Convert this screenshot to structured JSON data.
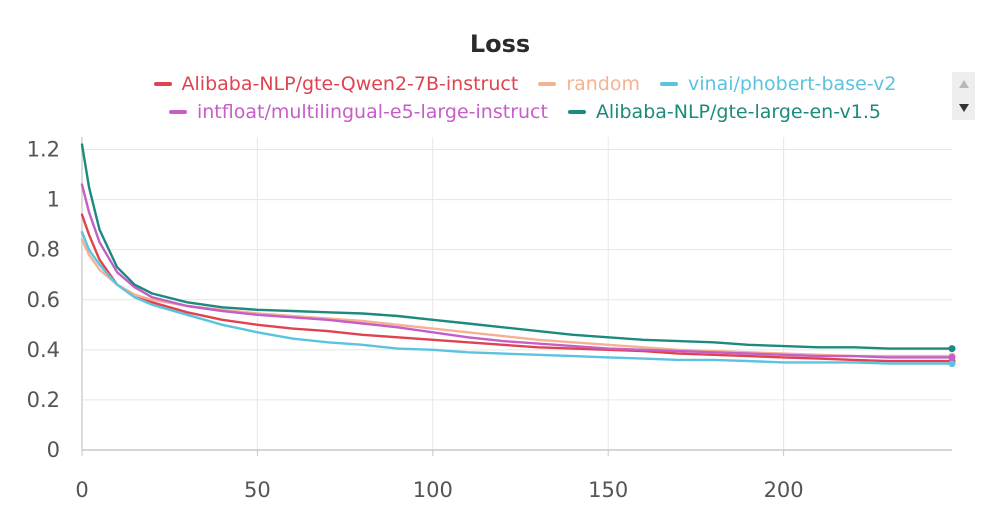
{
  "chart_data": {
    "type": "line",
    "title": "Loss",
    "xlabel": "",
    "ylabel": "",
    "xlim": [
      0,
      248
    ],
    "ylim": [
      0,
      1.25
    ],
    "x_ticks": [
      "0",
      "50",
      "100",
      "150",
      "200"
    ],
    "y_ticks": [
      "0",
      "0.2",
      "0.4",
      "0.6",
      "0.8",
      "1",
      "1.2"
    ],
    "grid": true,
    "legend_position": "top",
    "series": [
      {
        "name": "Alibaba-NLP/gte-Qwen2-7B-instruct",
        "color": "#e0434f",
        "points": [
          [
            0,
            0.94
          ],
          [
            2,
            0.86
          ],
          [
            5,
            0.76
          ],
          [
            10,
            0.66
          ],
          [
            15,
            0.62
          ],
          [
            20,
            0.59
          ],
          [
            30,
            0.55
          ],
          [
            40,
            0.52
          ],
          [
            50,
            0.5
          ],
          [
            60,
            0.485
          ],
          [
            70,
            0.475
          ],
          [
            80,
            0.46
          ],
          [
            90,
            0.45
          ],
          [
            100,
            0.44
          ],
          [
            110,
            0.43
          ],
          [
            120,
            0.42
          ],
          [
            130,
            0.41
          ],
          [
            140,
            0.405
          ],
          [
            150,
            0.4
          ],
          [
            160,
            0.395
          ],
          [
            170,
            0.385
          ],
          [
            180,
            0.38
          ],
          [
            190,
            0.375
          ],
          [
            200,
            0.37
          ],
          [
            210,
            0.365
          ],
          [
            220,
            0.36
          ],
          [
            230,
            0.355
          ],
          [
            240,
            0.355
          ],
          [
            248,
            0.355
          ]
        ]
      },
      {
        "name": "random",
        "color": "#f4b293",
        "points": [
          [
            0,
            0.84
          ],
          [
            2,
            0.78
          ],
          [
            5,
            0.72
          ],
          [
            10,
            0.66
          ],
          [
            15,
            0.62
          ],
          [
            20,
            0.6
          ],
          [
            30,
            0.575
          ],
          [
            40,
            0.56
          ],
          [
            50,
            0.545
          ],
          [
            60,
            0.535
          ],
          [
            70,
            0.525
          ],
          [
            80,
            0.515
          ],
          [
            90,
            0.5
          ],
          [
            100,
            0.485
          ],
          [
            110,
            0.47
          ],
          [
            120,
            0.455
          ],
          [
            130,
            0.44
          ],
          [
            140,
            0.43
          ],
          [
            150,
            0.42
          ],
          [
            160,
            0.41
          ],
          [
            170,
            0.4
          ],
          [
            180,
            0.395
          ],
          [
            190,
            0.39
          ],
          [
            200,
            0.385
          ],
          [
            210,
            0.38
          ],
          [
            220,
            0.375
          ],
          [
            230,
            0.375
          ],
          [
            240,
            0.375
          ],
          [
            248,
            0.375
          ]
        ]
      },
      {
        "name": "vinai/phobert-base-v2",
        "color": "#5bc3df",
        "points": [
          [
            0,
            0.87
          ],
          [
            2,
            0.8
          ],
          [
            5,
            0.74
          ],
          [
            10,
            0.66
          ],
          [
            15,
            0.61
          ],
          [
            20,
            0.58
          ],
          [
            30,
            0.54
          ],
          [
            40,
            0.5
          ],
          [
            50,
            0.47
          ],
          [
            60,
            0.445
          ],
          [
            70,
            0.43
          ],
          [
            80,
            0.42
          ],
          [
            90,
            0.405
          ],
          [
            100,
            0.4
          ],
          [
            110,
            0.39
          ],
          [
            120,
            0.385
          ],
          [
            130,
            0.38
          ],
          [
            140,
            0.375
          ],
          [
            150,
            0.37
          ],
          [
            160,
            0.365
          ],
          [
            170,
            0.36
          ],
          [
            180,
            0.36
          ],
          [
            190,
            0.355
          ],
          [
            200,
            0.35
          ],
          [
            210,
            0.35
          ],
          [
            220,
            0.35
          ],
          [
            230,
            0.345
          ],
          [
            240,
            0.345
          ],
          [
            248,
            0.345
          ]
        ]
      },
      {
        "name": "intfloat/multilingual-e5-large-instruct",
        "color": "#c55ec9",
        "points": [
          [
            0,
            1.06
          ],
          [
            2,
            0.95
          ],
          [
            5,
            0.83
          ],
          [
            10,
            0.71
          ],
          [
            15,
            0.65
          ],
          [
            20,
            0.61
          ],
          [
            30,
            0.575
          ],
          [
            40,
            0.555
          ],
          [
            50,
            0.54
          ],
          [
            60,
            0.53
          ],
          [
            70,
            0.52
          ],
          [
            80,
            0.505
          ],
          [
            90,
            0.49
          ],
          [
            100,
            0.47
          ],
          [
            110,
            0.45
          ],
          [
            120,
            0.435
          ],
          [
            130,
            0.425
          ],
          [
            140,
            0.415
          ],
          [
            150,
            0.405
          ],
          [
            160,
            0.4
          ],
          [
            170,
            0.395
          ],
          [
            180,
            0.39
          ],
          [
            190,
            0.385
          ],
          [
            200,
            0.38
          ],
          [
            210,
            0.375
          ],
          [
            220,
            0.375
          ],
          [
            230,
            0.37
          ],
          [
            240,
            0.37
          ],
          [
            248,
            0.37
          ]
        ]
      },
      {
        "name": "Alibaba-NLP/gte-large-en-v1.5",
        "color": "#1c8a7c",
        "points": [
          [
            0,
            1.22
          ],
          [
            2,
            1.05
          ],
          [
            5,
            0.88
          ],
          [
            10,
            0.73
          ],
          [
            15,
            0.66
          ],
          [
            20,
            0.625
          ],
          [
            30,
            0.59
          ],
          [
            40,
            0.57
          ],
          [
            50,
            0.56
          ],
          [
            60,
            0.555
          ],
          [
            70,
            0.55
          ],
          [
            80,
            0.545
          ],
          [
            90,
            0.535
          ],
          [
            100,
            0.52
          ],
          [
            110,
            0.505
          ],
          [
            120,
            0.49
          ],
          [
            130,
            0.475
          ],
          [
            140,
            0.46
          ],
          [
            150,
            0.45
          ],
          [
            160,
            0.44
          ],
          [
            170,
            0.435
          ],
          [
            180,
            0.43
          ],
          [
            190,
            0.42
          ],
          [
            200,
            0.415
          ],
          [
            210,
            0.41
          ],
          [
            220,
            0.41
          ],
          [
            230,
            0.405
          ],
          [
            240,
            0.405
          ],
          [
            248,
            0.405
          ]
        ]
      }
    ]
  },
  "legend_scroll": {
    "up_icon": "chevron-up-icon",
    "down_icon": "chevron-down-icon"
  }
}
